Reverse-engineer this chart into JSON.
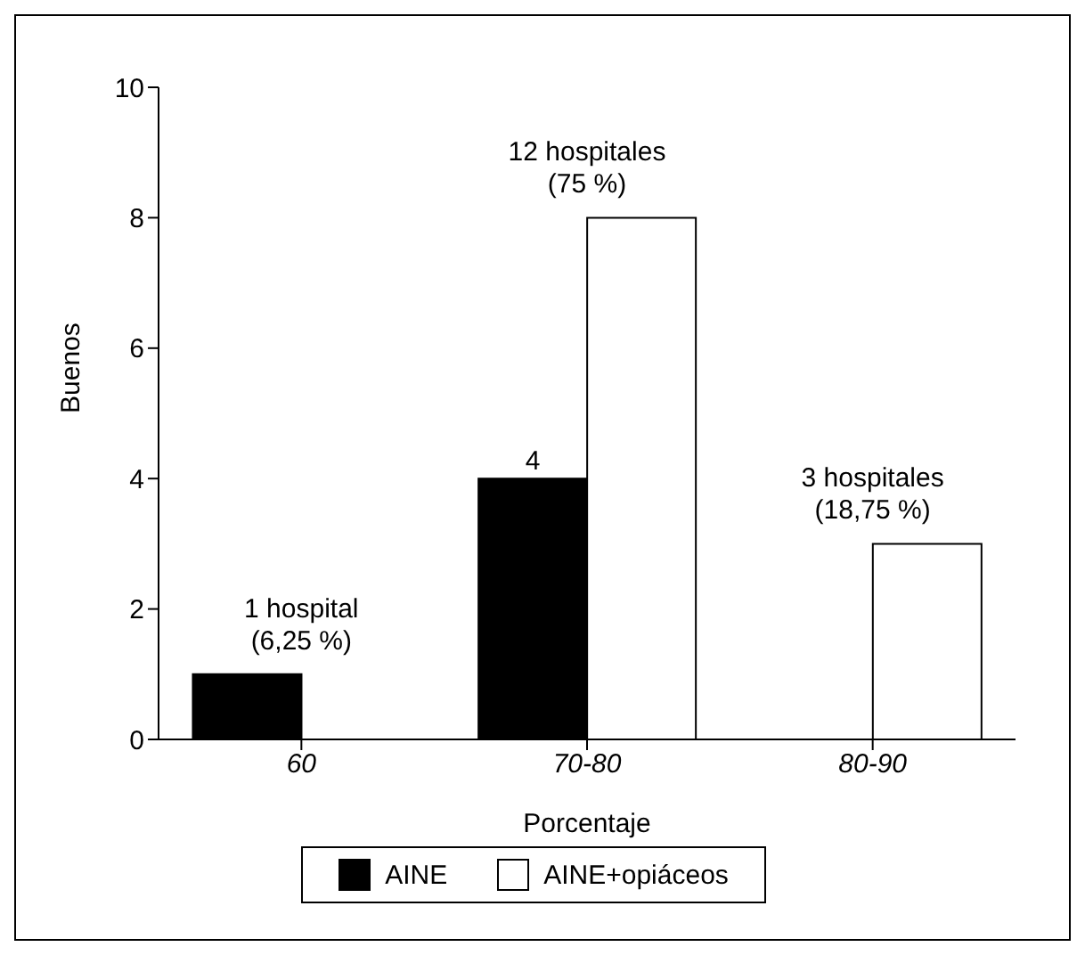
{
  "chart_data": {
    "type": "bar",
    "xlabel": "Porcentaje",
    "ylabel": "Buenos",
    "categories": [
      "60",
      "70-80",
      "80-90"
    ],
    "series": [
      {
        "name": "AINE",
        "color": "#000000",
        "values": [
          1,
          4,
          null
        ],
        "value_labels": [
          null,
          "4",
          null
        ]
      },
      {
        "name": "AINE+opiáceos",
        "color": "#ffffff",
        "values": [
          null,
          8,
          3
        ]
      }
    ],
    "ylim": [
      0,
      10
    ],
    "yticks": [
      0,
      2,
      4,
      6,
      8,
      10
    ],
    "grid": false,
    "legend": "bottom",
    "annotations": [
      {
        "text": "1 hospital (6,25 %)",
        "x": "60",
        "y": 1
      },
      {
        "text": "12 hospitales (75 %)",
        "x": "70-80",
        "y": 8
      },
      {
        "text": "3 hospitales (18,75 %)",
        "x": "80-90",
        "y": 3
      }
    ]
  }
}
